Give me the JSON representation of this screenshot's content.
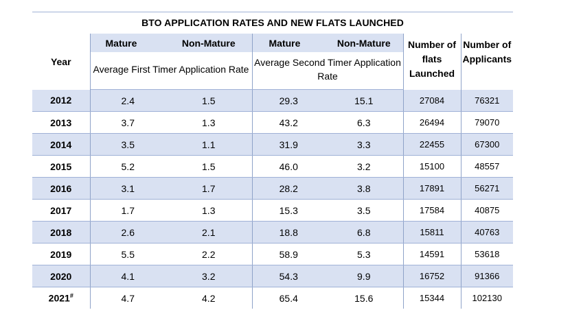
{
  "title": "BTO APPLICATION RATES AND NEW FLATS LAUNCHED",
  "header": {
    "year": "Year",
    "mature_1": "Mature",
    "nonmature_1": "Non-Mature",
    "mature_2": "Mature",
    "nonmature_2": "Non-Mature",
    "flats": "Number of flats Launched",
    "applicants": "Number of Applicants",
    "first_timer": "Average First Timer Application Rate",
    "second_timer": "Average Second Timer Application Rate"
  },
  "rows": [
    {
      "year": "2012",
      "ft_mature": "2.4",
      "ft_non": "1.5",
      "st_mature": "29.3",
      "st_non": "15.1",
      "flats": "27084",
      "applicants": "76321"
    },
    {
      "year": "2013",
      "ft_mature": "3.7",
      "ft_non": "1.3",
      "st_mature": "43.2",
      "st_non": "6.3",
      "flats": "26494",
      "applicants": "79070"
    },
    {
      "year": "2014",
      "ft_mature": "3.5",
      "ft_non": "1.1",
      "st_mature": "31.9",
      "st_non": "3.3",
      "flats": "22455",
      "applicants": "67300"
    },
    {
      "year": "2015",
      "ft_mature": "5.2",
      "ft_non": "1.5",
      "st_mature": "46.0",
      "st_non": "3.2",
      "flats": "15100",
      "applicants": "48557"
    },
    {
      "year": "2016",
      "ft_mature": "3.1",
      "ft_non": "1.7",
      "st_mature": "28.2",
      "st_non": "3.8",
      "flats": "17891",
      "applicants": "56271"
    },
    {
      "year": "2017",
      "ft_mature": "1.7",
      "ft_non": "1.3",
      "st_mature": "15.3",
      "st_non": "3.5",
      "flats": "17584",
      "applicants": "40875"
    },
    {
      "year": "2018",
      "ft_mature": "2.6",
      "ft_non": "2.1",
      "st_mature": "18.8",
      "st_non": "6.8",
      "flats": "15811",
      "applicants": "40763"
    },
    {
      "year": "2019",
      "ft_mature": "5.5",
      "ft_non": "2.2",
      "st_mature": "58.9",
      "st_non": "5.3",
      "flats": "14591",
      "applicants": "53618"
    },
    {
      "year": "2020",
      "ft_mature": "4.1",
      "ft_non": "3.2",
      "st_mature": "54.3",
      "st_non": "9.9",
      "flats": "16752",
      "applicants": "91366"
    },
    {
      "year": "2021",
      "year_mark": "#",
      "ft_mature": "4.7",
      "ft_non": "4.2",
      "st_mature": "65.4",
      "st_non": "15.6",
      "flats": "15344",
      "applicants": "102130"
    }
  ]
}
